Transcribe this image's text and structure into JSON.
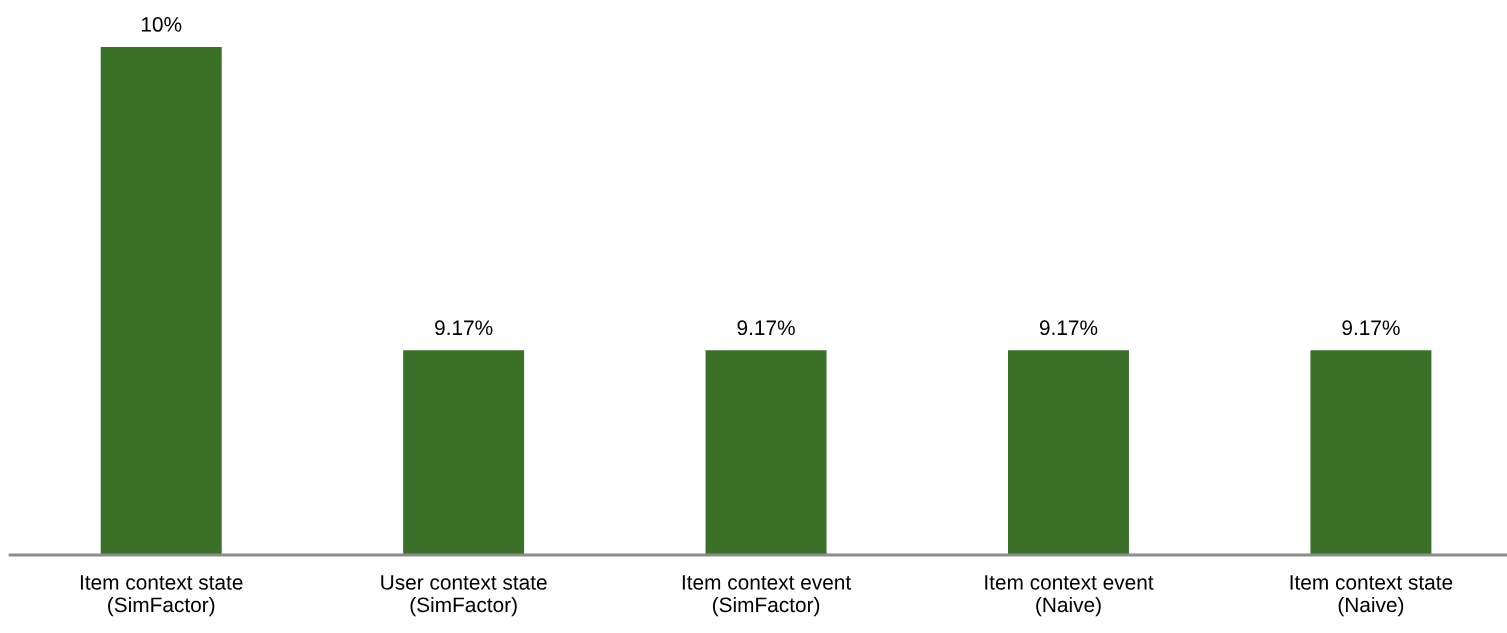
{
  "chart_data": {
    "type": "bar",
    "categories": [
      "Item context state\n(SimFactor)",
      "User context state\n(SimFactor)",
      "Item context event\n(SimFactor)",
      "Item context event\n(Naive)",
      "Item context state\n(Naive)"
    ],
    "values": [
      10,
      9.17,
      9.17,
      9.17,
      9.17
    ],
    "value_labels": [
      "10%",
      "9.17%",
      "9.17%",
      "9.17%",
      "9.17%"
    ],
    "color": "#3a7028",
    "ylim": [
      8.61,
      10
    ],
    "tick_labels": "x",
    "grid": false,
    "legend": false
  }
}
